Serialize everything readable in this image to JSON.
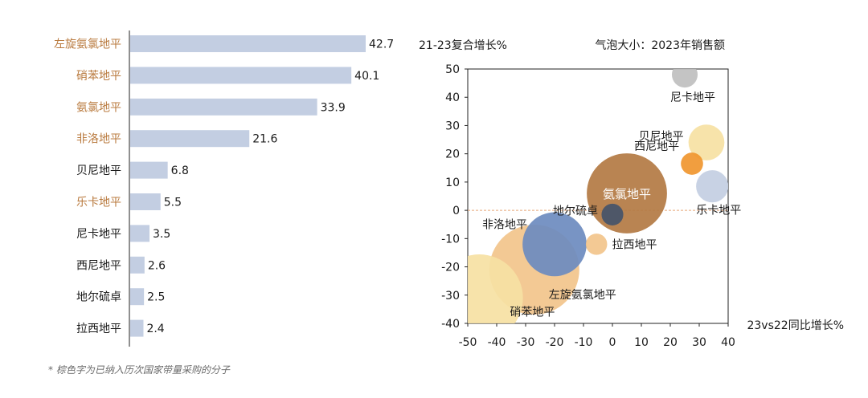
{
  "colors": {
    "highlight": "#b97a3e",
    "normal": "#1a1a1a",
    "bar": "#c3cee2",
    "axis": "#222222",
    "zero_line": "#e8a77a"
  },
  "footnote": "* 棕色字为已纳入历次国家带量采购的分子",
  "chart_data": [
    {
      "type": "bar",
      "orientation": "horizontal",
      "categories": [
        "左旋氨氯地平",
        "硝苯地平",
        "氨氯地平",
        "非洛地平",
        "贝尼地平",
        "乐卡地平",
        "尼卡地平",
        "西尼地平",
        "地尔硫卓",
        "拉西地平"
      ],
      "values": [
        42.7,
        40.1,
        33.9,
        21.6,
        6.8,
        5.5,
        3.5,
        2.6,
        2.5,
        2.4
      ],
      "value_labels": [
        "42.7",
        "40.1",
        "33.9",
        "21.6",
        "6.8",
        "5.5",
        "3.5",
        "2.6",
        "2.5",
        "2.4"
      ],
      "highlighted": [
        true,
        true,
        true,
        true,
        false,
        true,
        false,
        false,
        false,
        false
      ],
      "xlim": [
        0,
        42.7
      ]
    },
    {
      "type": "scatter",
      "subtype": "bubble",
      "ylabel": "21-23复合增长%",
      "xlabel": "23vs22同比增长%",
      "size_label": "气泡大小：2023年销售额",
      "xlim": [
        -50,
        40
      ],
      "ylim": [
        -40,
        50
      ],
      "xticks": [
        "-50",
        "-40",
        "-30",
        "-20",
        "-10",
        "0",
        "10",
        "20",
        "30",
        "40"
      ],
      "yticks": [
        "50",
        "40",
        "30",
        "20",
        "10",
        "0",
        "-10",
        "-20",
        "-30",
        "-40"
      ],
      "zero_line": true,
      "points": [
        {
          "name": "硝苯地平",
          "x": -46,
          "y": -31,
          "size": 40.1,
          "color": "#f6e1a3",
          "label": "硝苯地平",
          "label_pos": "below-right"
        },
        {
          "name": "左旋氨氯地平",
          "x": -27,
          "y": -21,
          "size": 42.7,
          "color": "#f2c48b",
          "label": "左旋氨氯地平",
          "label_pos": "below-right"
        },
        {
          "name": "非洛地平",
          "x": -20,
          "y": -12,
          "size": 21.6,
          "color": "#6c8bbf",
          "label": "非洛地平",
          "label_pos": "upper-left"
        },
        {
          "name": "氨氯地平",
          "x": 5,
          "y": 6,
          "size": 33.9,
          "color": "#b37a43",
          "label": "氨氯地平",
          "label_pos": "inside"
        },
        {
          "name": "地尔硫卓",
          "x": 0,
          "y": -1.5,
          "size": 2.5,
          "color": "#44546a",
          "label": "地尔硫卓",
          "label_pos": "left"
        },
        {
          "name": "拉西地平",
          "x": -5.5,
          "y": -12,
          "size": 2.4,
          "color": "#f2c48b",
          "label": "拉西地平",
          "label_pos": "right"
        },
        {
          "name": "尼卡地平",
          "x": 25,
          "y": 48,
          "size": 3.5,
          "color": "#bfbfbf",
          "label": "尼卡地平",
          "label_pos": "below"
        },
        {
          "name": "贝尼地平",
          "x": 32.5,
          "y": 24,
          "size": 6.8,
          "color": "#f6e1a3",
          "label": "贝尼地平",
          "label_pos": "left"
        },
        {
          "name": "西尼地平",
          "x": 27.5,
          "y": 16.5,
          "size": 2.6,
          "color": "#f0962f",
          "label": "西尼地平",
          "label_pos": "upper-left"
        },
        {
          "name": "乐卡地平",
          "x": 34.5,
          "y": 8.5,
          "size": 5.5,
          "color": "#c3cee2",
          "label": "乐卡地平",
          "label_pos": "below-left"
        }
      ]
    }
  ]
}
